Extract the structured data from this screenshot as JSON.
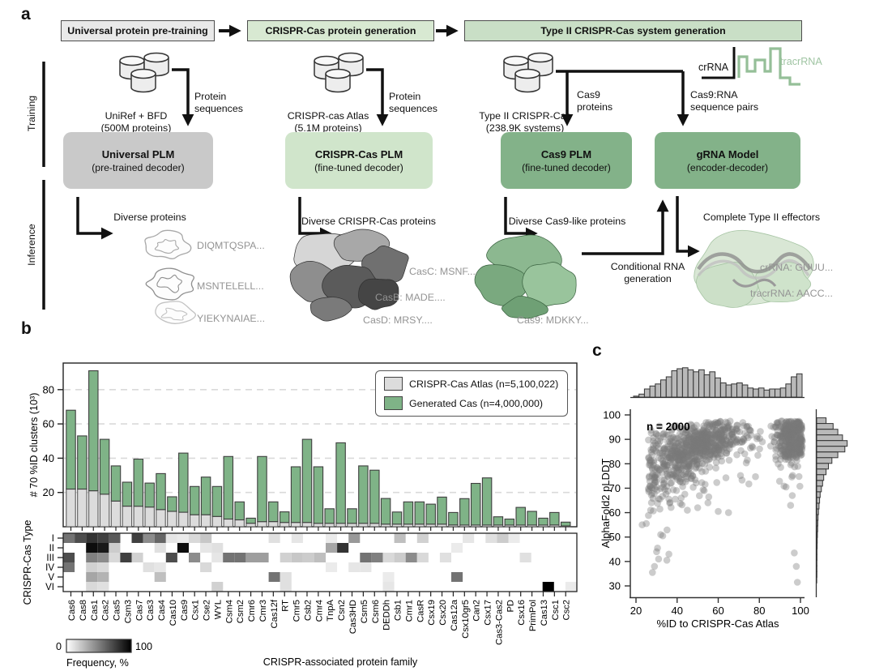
{
  "colors": {
    "atlas_gray": "#dcdcdc",
    "generated_green": "#7fb387",
    "model_green_dark": "#83b289",
    "model_green_light": "#d0e5cb",
    "model_gray": "#c9c9c9",
    "header_gray": "#e9e9e9",
    "header_green_light": "#d8e9d2",
    "header_green": "#c9dfc6",
    "scatter_gray": "#787878",
    "hist_gray": "#b9b9b9",
    "tracr_green": "#95bf98"
  },
  "panel_a": {
    "label": "a",
    "headers": [
      "Universal protein pre-training",
      "CRISPR-Cas protein generation",
      "Type II CRISPR-Cas system generation"
    ],
    "side": {
      "training": "Training",
      "inference": "Inference"
    },
    "cols": [
      {
        "db": "UniRef + BFD\n(500M proteins)",
        "flow": "Protein\nsequences",
        "model": "Universal PLM",
        "model_sub": "(pre-trained decoder)"
      },
      {
        "db": "CRISPR-cas Atlas\n(5.1M proteins)",
        "flow": "Protein\nsequences",
        "model": "CRISPR-Cas PLM",
        "model_sub": "(fine-tuned decoder)"
      },
      {
        "db": "Type II CRISPR-Cas\n(238.9K systems)",
        "flow": "Cas9\nproteins",
        "model": "Cas9 PLM",
        "model_sub": "(fine-tuned decoder)"
      },
      {
        "db": "",
        "flow": "Cas9:RNA\nsequence pairs",
        "model": "gRNA Model",
        "model_sub": "(encoder-decoder)"
      }
    ],
    "rna": {
      "crrna": "crRNA",
      "tracrrna": "tracrRNA"
    },
    "inference": {
      "col1_title": "Diverse proteins",
      "col1_seqs": [
        "DIQMTQSPA...",
        "MSNTELELL...",
        "YIEKYNAIAE..."
      ],
      "col2_title": "Diverse CRISPR-Cas proteins",
      "col2_seqs": [
        "CasC: MSNF....",
        "CasB: MADE....",
        "CasD: MRSY...."
      ],
      "col3_title": "Diverse Cas9-like proteins",
      "col3_seq": "Cas9: MDKKY...",
      "conditional": "Conditional RNA\ngeneration",
      "col4_title": "Complete Type II effectors",
      "col4_seqs": [
        "crRNA: GUUU...",
        "tracrRNA: AACC..."
      ]
    }
  },
  "panel_b": {
    "label": "b",
    "legend": {
      "atlas": "CRISPR-Cas Atlas (n=5,100,022)",
      "generated": "Generated Cas (n=4,000,000)"
    }
  },
  "panel_c": {
    "label": "c",
    "annotation": "n = 2000"
  },
  "chart_data": [
    {
      "type": "bar",
      "stacked": true,
      "xlabel": "CRISPR-associated protein family",
      "ylabel": "# 70 %ID clusters (10³)",
      "ylim": [
        0,
        95
      ],
      "yticks": [
        20,
        40,
        60,
        80
      ],
      "grid": "dashed-horizontal",
      "legend_position": "upper-right",
      "categories": [
        "Cas6",
        "Cas8",
        "Cas1",
        "Cas2",
        "Cas5",
        "Csm3",
        "Cas7",
        "Cas3",
        "Cas4",
        "Cas10",
        "Cas9",
        "Csx1",
        "Cse2",
        "WYL",
        "Csm4",
        "Csm2",
        "Cmr6",
        "Cmr3",
        "Cas12f",
        "RT",
        "Cmr5",
        "Csb2",
        "Cmr4",
        "TnpA",
        "Csn2",
        "Cas3HD",
        "Csm5",
        "Csm6",
        "DEDDh",
        "Csb1",
        "Cmr1",
        "CasR",
        "Csx19",
        "Csx20",
        "Cas12a",
        "Csx10gr5",
        "Can2",
        "Csx17",
        "Cas3-Cas2",
        "PD",
        "Csx16",
        "PrimPol",
        "Cas13",
        "Csc1",
        "Csc2"
      ],
      "series": [
        {
          "name": "CRISPR-Cas Atlas (n=5,100,022)",
          "values": [
            22,
            22,
            21,
            19,
            15,
            12,
            12,
            11.5,
            10,
            9,
            8.5,
            7,
            7,
            6,
            4.5,
            4,
            2,
            3,
            3,
            2.5,
            2.5,
            2.5,
            2,
            2,
            2,
            2,
            2,
            2,
            1.5,
            1.5,
            1.5,
            1.5,
            1.5,
            1.5,
            1,
            1,
            1,
            1,
            1,
            1,
            1,
            1,
            1,
            1,
            0.5
          ]
        },
        {
          "name": "Generated Cas (n=4,000,000)",
          "values": [
            46,
            31,
            70,
            32,
            20.5,
            14,
            27.5,
            14,
            21,
            8.5,
            34.5,
            16.5,
            22,
            17.5,
            36.5,
            10.5,
            3,
            38,
            11.5,
            6.2,
            32.5,
            48.5,
            33,
            8.5,
            47,
            8.5,
            33.5,
            31,
            15,
            7.1,
            13,
            13,
            11.7,
            15.8,
            7.3,
            15.4,
            24.3,
            27.5,
            4.8,
            3.5,
            10.3,
            8,
            4,
            7.3,
            2.2
          ]
        }
      ]
    },
    {
      "type": "heatmap",
      "ylabel": "CRISPR-Cas Type",
      "rows": [
        "I",
        "II",
        "III",
        "IV",
        "V",
        "VI"
      ],
      "columns": [
        "Cas6",
        "Cas8",
        "Cas1",
        "Cas2",
        "Cas5",
        "Csm3",
        "Cas7",
        "Cas3",
        "Cas4",
        "Cas10",
        "Cas9",
        "Csx1",
        "Cse2",
        "WYL",
        "Csm4",
        "Csm2",
        "Cmr6",
        "Cmr3",
        "Cas12f",
        "RT",
        "Cmr5",
        "Csb2",
        "Cmr4",
        "TnpA",
        "Csn2",
        "Cas3HD",
        "Csm5",
        "Csm6",
        "DEDDh",
        "Csb1",
        "Cmr1",
        "CasR",
        "Csx19",
        "Csx20",
        "Cas12a",
        "Csx10gr5",
        "Can2",
        "Csx17",
        "Cas3-Cas2",
        "PD",
        "Csx16",
        "PrimPol",
        "Cas13",
        "Csc1",
        "Csc2"
      ],
      "values": [
        [
          55,
          70,
          80,
          75,
          65,
          0,
          75,
          45,
          60,
          10,
          8,
          15,
          22,
          0,
          0,
          0,
          0,
          0,
          12,
          0,
          10,
          0,
          0,
          8,
          0,
          40,
          0,
          0,
          0,
          25,
          0,
          18,
          0,
          0,
          0,
          10,
          0,
          12,
          20,
          8,
          0,
          0,
          0,
          0,
          0
        ],
        [
          0,
          0,
          95,
          90,
          20,
          0,
          0,
          0,
          12,
          0,
          95,
          0,
          10,
          12,
          0,
          0,
          0,
          0,
          0,
          0,
          0,
          0,
          0,
          35,
          80,
          0,
          0,
          0,
          0,
          0,
          0,
          0,
          0,
          0,
          8,
          0,
          0,
          0,
          0,
          0,
          0,
          0,
          0,
          0,
          0
        ],
        [
          70,
          0,
          50,
          45,
          15,
          75,
          18,
          0,
          0,
          70,
          0,
          45,
          0,
          10,
          55,
          55,
          38,
          38,
          0,
          18,
          22,
          20,
          25,
          0,
          0,
          0,
          55,
          50,
          15,
          20,
          45,
          15,
          0,
          12,
          0,
          0,
          0,
          0,
          0,
          0,
          12,
          0,
          0,
          0,
          0
        ],
        [
          55,
          0,
          18,
          15,
          0,
          0,
          0,
          12,
          10,
          0,
          0,
          0,
          15,
          0,
          0,
          0,
          0,
          0,
          0,
          0,
          0,
          0,
          0,
          8,
          0,
          10,
          10,
          0,
          0,
          0,
          0,
          0,
          0,
          0,
          0,
          0,
          0,
          0,
          0,
          0,
          0,
          0,
          0,
          0,
          0
        ],
        [
          0,
          0,
          35,
          30,
          0,
          0,
          0,
          0,
          25,
          0,
          0,
          0,
          0,
          0,
          0,
          0,
          0,
          0,
          55,
          12,
          0,
          0,
          0,
          0,
          0,
          0,
          0,
          0,
          8,
          0,
          0,
          0,
          0,
          0,
          55,
          0,
          0,
          0,
          0,
          0,
          0,
          0,
          0,
          0,
          0
        ],
        [
          0,
          0,
          15,
          12,
          0,
          0,
          0,
          0,
          0,
          0,
          0,
          0,
          0,
          18,
          0,
          0,
          0,
          0,
          0,
          12,
          0,
          0,
          0,
          0,
          0,
          0,
          0,
          0,
          10,
          0,
          0,
          0,
          0,
          0,
          0,
          0,
          0,
          0,
          0,
          0,
          0,
          0,
          100,
          0,
          8
        ]
      ],
      "colorbar": {
        "min": 0,
        "max": 100,
        "label": "Frequency, %"
      }
    },
    {
      "type": "scatter",
      "annotation": "n = 2000",
      "xlabel": "%ID to CRISPR-Cas Atlas",
      "ylabel": "AlphaFold2 pLDDT",
      "xlim": [
        17,
        103
      ],
      "ylim": [
        28,
        102
      ],
      "xticks": [
        20,
        40,
        60,
        80,
        100
      ],
      "yticks": [
        30,
        40,
        50,
        60,
        70,
        80,
        90,
        100
      ],
      "top_histogram": {
        "bin_start": 26,
        "bin_width": 2.42,
        "rel_heights": [
          1,
          3,
          8,
          11,
          13,
          17,
          20,
          26,
          28,
          29,
          27,
          25,
          27,
          22,
          25,
          19,
          14,
          12,
          13,
          14,
          12,
          9,
          8,
          9,
          7,
          8,
          8,
          9,
          13,
          20,
          23
        ]
      },
      "right_histogram": {
        "bin_start": 98.8,
        "bin_width": 2.33,
        "rel_heights": [
          8,
          14,
          18,
          22,
          26,
          24,
          18,
          13,
          10,
          8,
          6,
          5,
          4,
          3,
          2.5,
          2,
          1.5,
          1.2,
          1,
          0.8,
          0.6,
          0.5,
          0.4,
          0.3,
          0.3,
          0.2,
          0.2,
          0.2,
          0.1
        ]
      },
      "points_model": {
        "n_points_label": 2000,
        "n_render": 1050,
        "seed": 11,
        "x_clusters": [
          {
            "weight": 0.7,
            "mean": 48,
            "sd": 13
          },
          {
            "weight": 0.3,
            "mean": 95.5,
            "sd": 4.5
          }
        ],
        "y_base": {
          "mean": 90.5,
          "sd": 4.6,
          "max": 97.5
        },
        "low_x_spread_below": 58
      },
      "outlier_points": [
        [
          23,
          55
        ],
        [
          25,
          55.5
        ],
        [
          28,
          35.5
        ],
        [
          29,
          38
        ],
        [
          30,
          44
        ],
        [
          30.5,
          45.5
        ],
        [
          31,
          41
        ],
        [
          32,
          51
        ],
        [
          33,
          50.5
        ],
        [
          35,
          40.5
        ],
        [
          36,
          43
        ],
        [
          97,
          43.5
        ],
        [
          98,
          38
        ],
        [
          98.5,
          31.5
        ],
        [
          96,
          67
        ],
        [
          93,
          70.5
        ],
        [
          60,
          60.5
        ],
        [
          65,
          60
        ],
        [
          55,
          64
        ],
        [
          50,
          62
        ],
        [
          45,
          61
        ],
        [
          42,
          66
        ]
      ]
    }
  ]
}
